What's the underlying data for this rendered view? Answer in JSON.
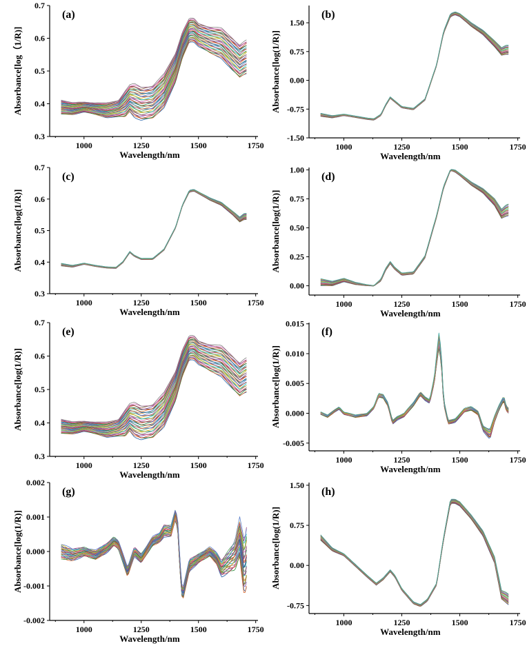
{
  "chart_data": [
    {
      "panel_label": "(a)",
      "type": "line",
      "xlabel": "Wavelength/nm",
      "ylabel": "Absorbance[log（1/R)]",
      "xlim": [
        850,
        1760
      ],
      "ylim": [
        0.3,
        0.7
      ],
      "x_ticks": [
        1000,
        1250,
        1500,
        1750
      ],
      "y_ticks": [
        0.3,
        0.4,
        0.5,
        0.6,
        0.7
      ],
      "y_tick_labels": [
        "0.3",
        "0.4",
        "0.5",
        "0.6",
        "0.7"
      ],
      "mean_x": [
        900,
        950,
        1000,
        1050,
        1100,
        1150,
        1180,
        1200,
        1220,
        1250,
        1300,
        1350,
        1400,
        1430,
        1460,
        1480,
        1500,
        1550,
        1600,
        1650,
        1680,
        1700,
        1715
      ],
      "mean_y": [
        0.39,
        0.385,
        0.39,
        0.385,
        0.38,
        0.385,
        0.4,
        0.417,
        0.41,
        0.4,
        0.405,
        0.44,
        0.51,
        0.58,
        0.625,
        0.625,
        0.61,
        0.595,
        0.585,
        0.55,
        0.53,
        0.54,
        0.545
      ],
      "spread": [
        0.022,
        0.018,
        0.015,
        0.018,
        0.022,
        0.025,
        0.04,
        0.04,
        0.05,
        0.05,
        0.05,
        0.05,
        0.045,
        0.04,
        0.035,
        0.035,
        0.035,
        0.04,
        0.045,
        0.05,
        0.05,
        0.05,
        0.05
      ],
      "n_series": 40
    },
    {
      "panel_label": "(b)",
      "type": "line",
      "xlabel": "Wavelength/nm",
      "ylabel": "Absorbance[log(1/R)]",
      "xlim": [
        850,
        1760
      ],
      "ylim": [
        -1.5,
        1.95
      ],
      "x_ticks": [
        1000,
        1250,
        1500,
        1750
      ],
      "y_ticks": [
        -1.5,
        -0.75,
        0,
        0.75,
        1.5
      ],
      "y_tick_labels": [
        "-1.50",
        "-0.75",
        "0.00",
        "0.75",
        "1.50"
      ],
      "mean_x": [
        900,
        950,
        1000,
        1050,
        1100,
        1130,
        1160,
        1180,
        1200,
        1220,
        1250,
        1300,
        1350,
        1400,
        1430,
        1460,
        1480,
        1500,
        1550,
        1600,
        1650,
        1680,
        1700,
        1715
      ],
      "mean_y": [
        -0.9,
        -0.95,
        -0.9,
        -0.95,
        -1.0,
        -1.02,
        -0.9,
        -0.65,
        -0.45,
        -0.55,
        -0.7,
        -0.75,
        -0.5,
        0.4,
        1.25,
        1.7,
        1.75,
        1.7,
        1.45,
        1.25,
        0.95,
        0.75,
        0.8,
        0.8
      ],
      "spread": [
        0.04,
        0.03,
        0.02,
        0.02,
        0.02,
        0.02,
        0.02,
        0.02,
        0.02,
        0.02,
        0.02,
        0.02,
        0.02,
        0.02,
        0.03,
        0.04,
        0.04,
        0.04,
        0.05,
        0.06,
        0.08,
        0.1,
        0.12,
        0.12
      ],
      "n_series": 16
    },
    {
      "panel_label": "(c)",
      "type": "line",
      "xlabel": "Wavelength/nm",
      "ylabel": "Absorbance[log(1/R)]",
      "xlim": [
        850,
        1760
      ],
      "ylim": [
        0.3,
        0.7
      ],
      "x_ticks": [
        1000,
        1250,
        1500,
        1750
      ],
      "y_ticks": [
        0.3,
        0.4,
        0.5,
        0.6,
        0.7
      ],
      "y_tick_labels": [
        "0.3",
        "0.4",
        "0.5",
        "0.6",
        "0.7"
      ],
      "mean_x": [
        900,
        950,
        1000,
        1050,
        1100,
        1140,
        1170,
        1200,
        1220,
        1250,
        1300,
        1350,
        1400,
        1430,
        1460,
        1480,
        1500,
        1550,
        1600,
        1650,
        1680,
        1700,
        1715
      ],
      "mean_y": [
        0.392,
        0.387,
        0.395,
        0.388,
        0.383,
        0.382,
        0.4,
        0.432,
        0.42,
        0.41,
        0.41,
        0.44,
        0.51,
        0.58,
        0.625,
        0.628,
        0.62,
        0.6,
        0.585,
        0.555,
        0.535,
        0.545,
        0.545
      ],
      "spread": [
        0.004,
        0.003,
        0.002,
        0.002,
        0.002,
        0.002,
        0.002,
        0.002,
        0.002,
        0.002,
        0.002,
        0.002,
        0.002,
        0.002,
        0.003,
        0.003,
        0.003,
        0.004,
        0.005,
        0.006,
        0.008,
        0.01,
        0.01
      ],
      "n_series": 16
    },
    {
      "panel_label": "(d)",
      "type": "line",
      "xlabel": "Wavelength/nm",
      "ylabel": "Absorbance[log(1/R)]",
      "xlim": [
        850,
        1760
      ],
      "ylim": [
        -0.08,
        1.02
      ],
      "x_ticks": [
        1000,
        1250,
        1500,
        1750
      ],
      "y_ticks": [
        0,
        0.25,
        0.5,
        0.75,
        1.0
      ],
      "y_tick_labels": [
        "0.00",
        "0.25",
        "0.50",
        "0.75",
        "1.00"
      ],
      "mean_x": [
        900,
        950,
        1000,
        1050,
        1100,
        1130,
        1160,
        1180,
        1200,
        1220,
        1250,
        1300,
        1350,
        1400,
        1430,
        1460,
        1480,
        1500,
        1550,
        1600,
        1650,
        1680,
        1700,
        1715
      ],
      "mean_y": [
        0.03,
        0.02,
        0.05,
        0.02,
        0.005,
        0.0,
        0.05,
        0.14,
        0.2,
        0.15,
        0.1,
        0.11,
        0.25,
        0.6,
        0.85,
        1.0,
        0.99,
        0.96,
        0.88,
        0.82,
        0.72,
        0.62,
        0.65,
        0.66
      ],
      "spread": [
        0.03,
        0.02,
        0.015,
        0.01,
        0.005,
        0.002,
        0.01,
        0.01,
        0.01,
        0.01,
        0.01,
        0.01,
        0.01,
        0.01,
        0.01,
        0.005,
        0.01,
        0.01,
        0.015,
        0.02,
        0.03,
        0.04,
        0.05,
        0.05
      ],
      "n_series": 16
    },
    {
      "panel_label": "(e)",
      "type": "line",
      "xlabel": "Wavelength/nm",
      "ylabel": "Absorbance[log(1/R)]",
      "xlim": [
        850,
        1760
      ],
      "ylim": [
        0.3,
        0.7
      ],
      "x_ticks": [
        1000,
        1250,
        1500,
        1750
      ],
      "y_ticks": [
        0.3,
        0.4,
        0.5,
        0.6,
        0.7
      ],
      "y_tick_labels": [
        "0.3",
        "0.4",
        "0.5",
        "0.6",
        "0.7"
      ],
      "mean_x": [
        900,
        950,
        1000,
        1050,
        1100,
        1150,
        1180,
        1200,
        1220,
        1250,
        1300,
        1350,
        1400,
        1430,
        1460,
        1480,
        1500,
        1550,
        1600,
        1650,
        1680,
        1700,
        1715
      ],
      "mean_y": [
        0.39,
        0.385,
        0.39,
        0.385,
        0.38,
        0.385,
        0.4,
        0.417,
        0.41,
        0.4,
        0.405,
        0.44,
        0.51,
        0.58,
        0.625,
        0.625,
        0.61,
        0.595,
        0.585,
        0.55,
        0.53,
        0.54,
        0.545
      ],
      "spread": [
        0.022,
        0.018,
        0.015,
        0.018,
        0.022,
        0.025,
        0.04,
        0.04,
        0.05,
        0.05,
        0.05,
        0.05,
        0.045,
        0.04,
        0.035,
        0.035,
        0.035,
        0.04,
        0.045,
        0.05,
        0.05,
        0.05,
        0.05
      ],
      "n_series": 40
    },
    {
      "panel_label": "(f)",
      "type": "line",
      "xlabel": "Wavelength/nm",
      "ylabel": "Absorbance[log(1/R)]",
      "xlim": [
        850,
        1760
      ],
      "ylim": [
        -0.0063,
        0.0152
      ],
      "x_ticks": [
        1000,
        1250,
        1500,
        1750
      ],
      "y_ticks": [
        -0.005,
        0,
        0.005,
        0.01,
        0.015
      ],
      "y_tick_labels": [
        "-0.005",
        "0.000",
        "0.005",
        "0.010",
        "0.015"
      ],
      "mean_x": [
        900,
        930,
        960,
        980,
        1000,
        1050,
        1100,
        1130,
        1150,
        1170,
        1190,
        1210,
        1230,
        1260,
        1300,
        1330,
        1350,
        1370,
        1390,
        1400,
        1410,
        1420,
        1430,
        1450,
        1480,
        1520,
        1550,
        1580,
        1600,
        1630,
        1650,
        1670,
        1690,
        1700,
        1715
      ],
      "mean_y": [
        0.0,
        -0.0005,
        0.0004,
        0.0009,
        0.0,
        -0.0005,
        -0.0002,
        0.001,
        0.003,
        0.0028,
        0.0015,
        -0.0015,
        -0.0008,
        -0.0003,
        0.0015,
        0.0033,
        0.0025,
        0.002,
        0.0055,
        0.009,
        0.012,
        0.0095,
        0.002,
        -0.0015,
        -0.0012,
        0.0005,
        0.0008,
        0.0,
        -0.0025,
        -0.0035,
        -0.001,
        0.001,
        0.0025,
        0.0008,
        0.0003
      ],
      "spread": [
        0.0002,
        0.0002,
        0.0002,
        0.0002,
        0.0002,
        0.0002,
        0.0002,
        0.0002,
        0.0003,
        0.0003,
        0.0003,
        0.0003,
        0.0003,
        0.0003,
        0.0003,
        0.0003,
        0.0003,
        0.0003,
        0.0005,
        0.0008,
        0.0012,
        0.001,
        0.0004,
        0.0003,
        0.0003,
        0.0003,
        0.0003,
        0.0003,
        0.0004,
        0.0008,
        0.0005,
        0.0004,
        0.0004,
        0.0004,
        0.0004
      ],
      "n_series": 16
    },
    {
      "panel_label": "(g)",
      "type": "line",
      "xlabel": "Wavelength/nm",
      "ylabel": "Absorbance[log(1/R)]",
      "xlim": [
        850,
        1760
      ],
      "ylim": [
        -0.002,
        0.002
      ],
      "x_ticks": [
        1000,
        1250,
        1500,
        1750
      ],
      "y_ticks": [
        -0.002,
        -0.001,
        0,
        0.001,
        0.002
      ],
      "y_tick_labels": [
        "-0.002",
        "-0.001",
        "0.000",
        "0.001",
        "0.002"
      ],
      "mean_x": [
        900,
        950,
        1000,
        1050,
        1100,
        1130,
        1150,
        1170,
        1190,
        1200,
        1220,
        1250,
        1280,
        1300,
        1330,
        1350,
        1380,
        1400,
        1410,
        1420,
        1430,
        1440,
        1460,
        1500,
        1550,
        1580,
        1600,
        1630,
        1660,
        1680,
        1700,
        1715
      ],
      "mean_y": [
        0.0,
        -0.0001,
        0.0,
        -0.0001,
        0.0001,
        0.0003,
        0.0002,
        -0.0002,
        -0.0006,
        -0.0004,
        0.0,
        -0.0002,
        0.0001,
        0.0003,
        0.0004,
        0.0006,
        0.0006,
        0.0011,
        0.0007,
        -0.0005,
        -0.0013,
        -0.001,
        -0.0004,
        -0.0002,
        0.0,
        -0.0002,
        -0.0005,
        -0.0003,
        -0.0001,
        0.0004,
        -0.0005,
        0.0
      ],
      "spread": [
        0.0002,
        0.00015,
        0.00012,
        0.00012,
        0.00012,
        0.00012,
        0.00012,
        0.00012,
        0.00012,
        0.00012,
        0.00012,
        0.00012,
        0.00012,
        0.00012,
        0.00012,
        0.00015,
        0.00015,
        0.00015,
        0.00015,
        0.00015,
        0.00015,
        0.00015,
        0.00015,
        0.00012,
        0.00012,
        0.00015,
        0.0002,
        0.0003,
        0.0004,
        0.0005,
        0.0007,
        0.0008
      ],
      "n_series": 30
    },
    {
      "panel_label": "(h)",
      "type": "line",
      "xlabel": "Wavelength/nm",
      "ylabel": "Absorbance[log(1/R)]",
      "xlim": [
        850,
        1760
      ],
      "ylim": [
        -0.9,
        1.55
      ],
      "x_ticks": [
        1000,
        1250,
        1500,
        1750
      ],
      "y_ticks": [
        -0.75,
        0,
        0.75,
        1.5
      ],
      "y_tick_labels": [
        "-0.75",
        "0.00",
        "0.75",
        "1.50"
      ],
      "mean_x": [
        900,
        950,
        1000,
        1050,
        1100,
        1140,
        1170,
        1200,
        1220,
        1250,
        1300,
        1330,
        1360,
        1400,
        1430,
        1460,
        1480,
        1500,
        1550,
        1600,
        1650,
        1680,
        1700,
        1715
      ],
      "mean_y": [
        0.52,
        0.3,
        0.2,
        0.0,
        -0.2,
        -0.35,
        -0.25,
        -0.1,
        -0.2,
        -0.45,
        -0.7,
        -0.75,
        -0.65,
        -0.35,
        0.5,
        1.2,
        1.2,
        1.15,
        0.9,
        0.6,
        0.1,
        -0.55,
        -0.6,
        -0.65
      ],
      "spread": [
        0.05,
        0.03,
        0.02,
        0.02,
        0.02,
        0.02,
        0.02,
        0.02,
        0.02,
        0.02,
        0.02,
        0.02,
        0.02,
        0.02,
        0.03,
        0.04,
        0.04,
        0.04,
        0.04,
        0.05,
        0.06,
        0.08,
        0.1,
        0.1
      ],
      "n_series": 16
    }
  ],
  "series_colors": [
    "#1f5fa8",
    "#d9672b",
    "#2c8d3c",
    "#c83a3a",
    "#7a4fa3",
    "#8c5a3c",
    "#d55fb0",
    "#7f7f7f",
    "#b7b32a",
    "#1fb5c9",
    "#e8b21c",
    "#4a9d62",
    "#9a3f7a",
    "#5b7fc9",
    "#c77d2a",
    "#3aa6a0"
  ]
}
